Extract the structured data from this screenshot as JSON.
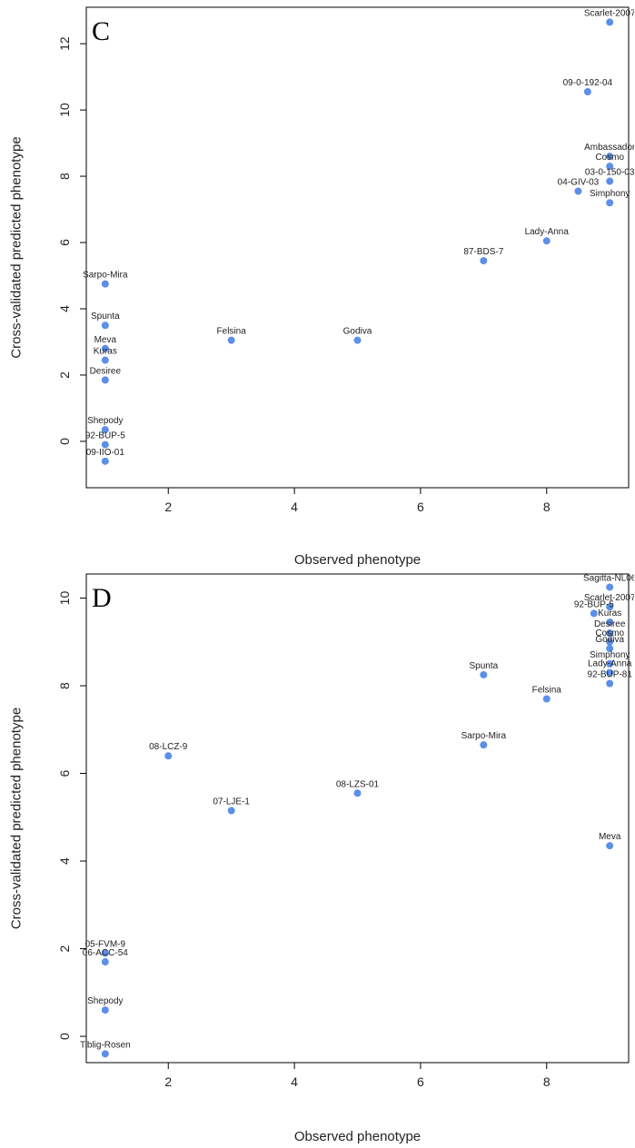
{
  "chart_data": [
    {
      "type": "scatter",
      "panel": "C",
      "xlabel": "Observed phenotype",
      "ylabel": "Cross-validated predicted phenotype",
      "xlim": [
        0.7,
        9.3
      ],
      "ylim": [
        -1.4,
        13.1
      ],
      "xticks": [
        2,
        4,
        6,
        8
      ],
      "yticks": [
        0,
        2,
        4,
        6,
        8,
        10,
        12
      ],
      "marker_color": "#5b8fe8",
      "points": [
        {
          "x": 9,
          "y": 12.65,
          "label": "Scarlet-2007"
        },
        {
          "x": 8.65,
          "y": 10.55,
          "label": "09-0-192-04"
        },
        {
          "x": 9,
          "y": 8.6,
          "label": "Ambassador"
        },
        {
          "x": 9,
          "y": 8.3,
          "label": "Cosmo"
        },
        {
          "x": 9,
          "y": 7.85,
          "label": "03-0-150-03"
        },
        {
          "x": 8.5,
          "y": 7.55,
          "label": "04-GIV-03"
        },
        {
          "x": 9,
          "y": 7.2,
          "label": "Simphony"
        },
        {
          "x": 8,
          "y": 6.05,
          "label": "Lady-Anna"
        },
        {
          "x": 7,
          "y": 5.45,
          "label": "87-BDS-7"
        },
        {
          "x": 1,
          "y": 4.75,
          "label": "Sarpo-Mira"
        },
        {
          "x": 1,
          "y": 3.5,
          "label": "Spunta"
        },
        {
          "x": 3,
          "y": 3.05,
          "label": "Felsina"
        },
        {
          "x": 5,
          "y": 3.05,
          "label": "Godiva"
        },
        {
          "x": 1,
          "y": 2.8,
          "label": "Meva"
        },
        {
          "x": 1,
          "y": 2.45,
          "label": "Kuras"
        },
        {
          "x": 1,
          "y": 1.85,
          "label": "Desiree"
        },
        {
          "x": 1,
          "y": 0.35,
          "label": "Shepody"
        },
        {
          "x": 1,
          "y": -0.1,
          "label": "92-BUP-5"
        },
        {
          "x": 1,
          "y": -0.6,
          "label": "09-IIO-01"
        }
      ]
    },
    {
      "type": "scatter",
      "panel": "D",
      "xlabel": "Observed phenotype",
      "ylabel": "Cross-validated predicted phenotype",
      "xlim": [
        0.7,
        9.3
      ],
      "ylim": [
        -0.6,
        10.55
      ],
      "xticks": [
        2,
        4,
        6,
        8
      ],
      "yticks": [
        0,
        2,
        4,
        6,
        8,
        10
      ],
      "marker_color": "#5b8fe8",
      "points": [
        {
          "x": 9,
          "y": 10.25,
          "label": "Sagitta-NL06"
        },
        {
          "x": 9,
          "y": 9.8,
          "label": "Scarlet-2007"
        },
        {
          "x": 8.75,
          "y": 9.65,
          "label": "92-BUP-5"
        },
        {
          "x": 9,
          "y": 9.45,
          "label": "Kuras"
        },
        {
          "x": 9,
          "y": 9.2,
          "label": "Desiree"
        },
        {
          "x": 9,
          "y": 9.0,
          "label": "Cosmo"
        },
        {
          "x": 9,
          "y": 8.85,
          "label": "Godiva"
        },
        {
          "x": 9,
          "y": 8.5,
          "label": "Simphony"
        },
        {
          "x": 9,
          "y": 8.3,
          "label": "Lady-Anna"
        },
        {
          "x": 9,
          "y": 8.05,
          "label": "92-BUP-81"
        },
        {
          "x": 7,
          "y": 8.25,
          "label": "Spunta"
        },
        {
          "x": 8,
          "y": 7.7,
          "label": "Felsina"
        },
        {
          "x": 7,
          "y": 6.65,
          "label": "Sarpo-Mira"
        },
        {
          "x": 2,
          "y": 6.4,
          "label": "08-LCZ-9"
        },
        {
          "x": 5,
          "y": 5.55,
          "label": "08-LZS-01"
        },
        {
          "x": 3,
          "y": 5.15,
          "label": "07-LJE-1"
        },
        {
          "x": 9,
          "y": 4.35,
          "label": "Meva"
        },
        {
          "x": 1,
          "y": 1.9,
          "label": "05-FVM-9"
        },
        {
          "x": 1,
          "y": 1.7,
          "label": "06-ACC-54"
        },
        {
          "x": 1,
          "y": 0.6,
          "label": "Shepody"
        },
        {
          "x": 1,
          "y": -0.4,
          "label": "Tiblig-Rosen"
        }
      ]
    }
  ]
}
